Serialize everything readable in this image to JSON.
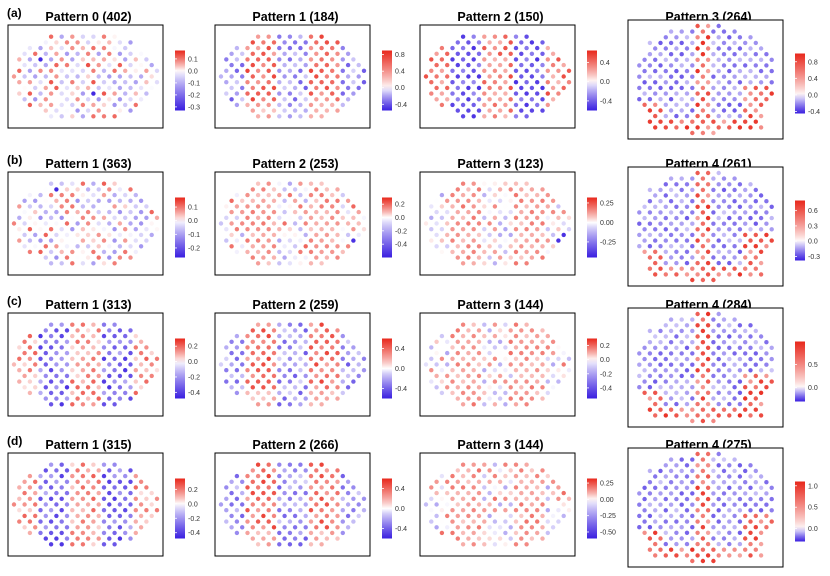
{
  "figure": {
    "description_rows": [
      "(a)",
      "(b)",
      "(c)",
      "(d)"
    ]
  },
  "colors": {
    "low": "#3a1fe0",
    "mid": "#ffffff",
    "high": "#e8281c",
    "panel_border": "#000000",
    "text": "#000000"
  },
  "chart_data": [
    {
      "type": "heatmap",
      "row": "(a)",
      "title": "Pattern 0 (402)",
      "shape": "oval",
      "layout": "patches",
      "range": [
        -0.33,
        0.17
      ],
      "ticks": [
        "0.1",
        "0.0",
        "-0.1",
        "-0.2",
        "-0.3"
      ],
      "tick_values": [
        0.1,
        0.0,
        -0.1,
        -0.2,
        -0.3
      ],
      "seed": 11
    },
    {
      "type": "heatmap",
      "row": "(a)",
      "title": "Pattern 1 (184)",
      "shape": "oval",
      "layout": "stripes",
      "range": [
        -0.55,
        0.9
      ],
      "ticks": [
        "0.8",
        "0.4",
        "0.0",
        "-0.4"
      ],
      "tick_values": [
        0.8,
        0.4,
        0.0,
        -0.4
      ],
      "seed": 12
    },
    {
      "type": "heatmap",
      "row": "(a)",
      "title": "Pattern 2 (150)",
      "shape": "oval",
      "layout": "stripes_blue",
      "range": [
        -0.6,
        0.65
      ],
      "ticks": [
        "0.4",
        "0.0",
        "-0.4"
      ],
      "tick_values": [
        0.4,
        0.0,
        -0.4
      ],
      "seed": 13
    },
    {
      "type": "heatmap",
      "row": "(a)",
      "title": "Pattern 3 (264)",
      "shape": "oval_tall",
      "layout": "edge",
      "range": [
        -0.45,
        1.0
      ],
      "ticks": [
        "0.8",
        "0.4",
        "0.0",
        "-0.4"
      ],
      "tick_values": [
        0.8,
        0.4,
        0.0,
        -0.4
      ],
      "seed": 14
    },
    {
      "type": "heatmap",
      "row": "(b)",
      "title": "Pattern 1 (363)",
      "shape": "oval",
      "layout": "patches",
      "range": [
        -0.27,
        0.17
      ],
      "ticks": [
        "0.1",
        "0.0",
        "-0.1",
        "-0.2"
      ],
      "tick_values": [
        0.1,
        0.0,
        -0.1,
        -0.2
      ],
      "seed": 21
    },
    {
      "type": "heatmap",
      "row": "(b)",
      "title": "Pattern 2 (253)",
      "shape": "oval",
      "layout": "soft_stripes",
      "range": [
        -0.6,
        0.3
      ],
      "ticks": [
        "0.2",
        "0.0",
        "-0.2",
        "-0.4"
      ],
      "tick_values": [
        0.2,
        0.0,
        -0.2,
        -0.4
      ],
      "seed": 22
    },
    {
      "type": "heatmap",
      "row": "(b)",
      "title": "Pattern 3 (123)",
      "shape": "oval",
      "layout": "soft_stripes",
      "range": [
        -0.45,
        0.32
      ],
      "ticks": [
        "0.25",
        "0.00",
        "-0.25"
      ],
      "tick_values": [
        0.25,
        0.0,
        -0.25
      ],
      "seed": 23
    },
    {
      "type": "heatmap",
      "row": "(b)",
      "title": "Pattern 4 (261)",
      "shape": "oval_tall",
      "layout": "edge",
      "range": [
        -0.38,
        0.8
      ],
      "ticks": [
        "0.6",
        "0.3",
        "0.0",
        "-0.3"
      ],
      "tick_values": [
        0.6,
        0.3,
        0.0,
        -0.3
      ],
      "seed": 24
    },
    {
      "type": "heatmap",
      "row": "(c)",
      "title": "Pattern 1 (313)",
      "shape": "oval",
      "layout": "cols_blue",
      "range": [
        -0.48,
        0.3
      ],
      "ticks": [
        "0.2",
        "0.0",
        "-0.2",
        "-0.4"
      ],
      "tick_values": [
        0.2,
        0.0,
        -0.2,
        -0.4
      ],
      "seed": 31
    },
    {
      "type": "heatmap",
      "row": "(c)",
      "title": "Pattern 2 (259)",
      "shape": "oval",
      "layout": "stripes",
      "range": [
        -0.6,
        0.6
      ],
      "ticks": [
        "0.4",
        "0.0",
        "-0.4"
      ],
      "tick_values": [
        0.4,
        0.0,
        -0.4
      ],
      "seed": 32
    },
    {
      "type": "heatmap",
      "row": "(c)",
      "title": "Pattern 3 (144)",
      "shape": "oval",
      "layout": "soft_stripes",
      "range": [
        -0.55,
        0.3
      ],
      "ticks": [
        "0.2",
        "0.0",
        "-0.2",
        "-0.4"
      ],
      "tick_values": [
        0.2,
        0.0,
        -0.2,
        -0.4
      ],
      "seed": 33
    },
    {
      "type": "heatmap",
      "row": "(c)",
      "title": "Pattern 4 (284)",
      "shape": "oval_tall",
      "layout": "edge",
      "range": [
        -0.3,
        1.0
      ],
      "ticks": [
        "0.5",
        "0.0"
      ],
      "tick_values": [
        0.5,
        0.0
      ],
      "seed": 34
    },
    {
      "type": "heatmap",
      "row": "(d)",
      "title": "Pattern 1 (315)",
      "shape": "oval",
      "layout": "cols_blue",
      "range": [
        -0.48,
        0.35
      ],
      "ticks": [
        "0.2",
        "0.0",
        "-0.2",
        "-0.4"
      ],
      "tick_values": [
        0.2,
        0.0,
        -0.2,
        -0.4
      ],
      "seed": 41
    },
    {
      "type": "heatmap",
      "row": "(d)",
      "title": "Pattern 2 (266)",
      "shape": "oval",
      "layout": "stripes",
      "range": [
        -0.6,
        0.6
      ],
      "ticks": [
        "0.4",
        "0.0",
        "-0.4"
      ],
      "tick_values": [
        0.4,
        0.0,
        -0.4
      ],
      "seed": 42
    },
    {
      "type": "heatmap",
      "row": "(d)",
      "title": "Pattern 3 (144)",
      "shape": "oval",
      "layout": "soft_stripes",
      "range": [
        -0.6,
        0.32
      ],
      "ticks": [
        "0.25",
        "0.00",
        "-0.25",
        "-0.50"
      ],
      "tick_values": [
        0.25,
        0.0,
        -0.25,
        -0.5
      ],
      "seed": 43
    },
    {
      "type": "heatmap",
      "row": "(d)",
      "title": "Pattern 4 (275)",
      "shape": "oval_tall",
      "layout": "edge",
      "range": [
        -0.3,
        1.1
      ],
      "ticks": [
        "1.0",
        "0.5",
        "0.0"
      ],
      "tick_values": [
        1.0,
        0.5,
        0.0
      ],
      "seed": 44
    }
  ]
}
